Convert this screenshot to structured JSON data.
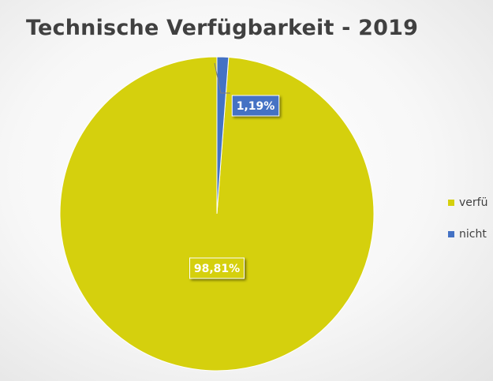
{
  "chart_data": {
    "type": "pie",
    "title": "Technische Verfügbarkeit - 2019",
    "slices": [
      {
        "label": "verfü",
        "value": 98.81,
        "data_label": "98,81%",
        "color": "#d5d00d"
      },
      {
        "label": "nicht",
        "value": 1.19,
        "data_label": "1,19%",
        "color": "#4472c4"
      }
    ],
    "legend_position": "right"
  }
}
